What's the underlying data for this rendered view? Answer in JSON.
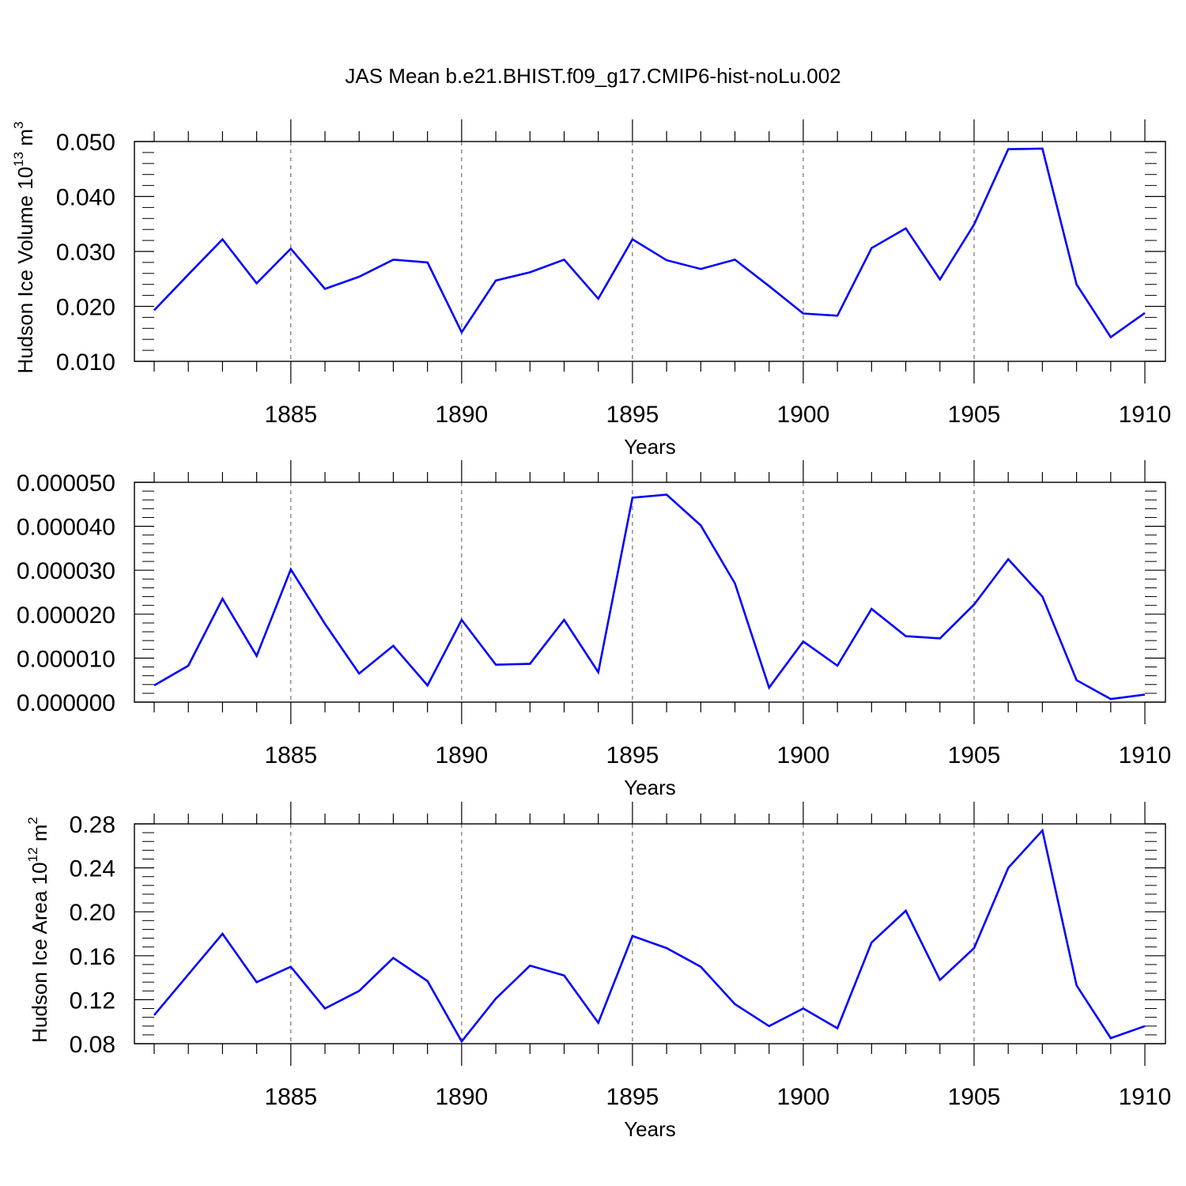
{
  "title": "JAS Mean b.e21.BHIST.f09_g17.CMIP6-hist-noLu.002",
  "chart_data": [
    {
      "type": "line",
      "xlabel": "Years",
      "ylabel": {
        "main": "Hudson Ice Volume 10",
        "sup": "13",
        "unit": " m",
        "unit_sup": "3"
      },
      "xlim": [
        1881,
        1910
      ],
      "ylim": [
        0.01,
        0.05
      ],
      "x_ticks": [
        "1885",
        "1890",
        "1895",
        "1900",
        "1905",
        "1910"
      ],
      "y_ticks": [
        "0.010",
        "0.020",
        "0.030",
        "0.040",
        "0.050"
      ],
      "grid": "dashed vertical at major x ticks",
      "color": "#0000ff",
      "x": [
        1881,
        1882,
        1883,
        1884,
        1885,
        1886,
        1887,
        1888,
        1889,
        1890,
        1891,
        1892,
        1893,
        1894,
        1895,
        1896,
        1897,
        1898,
        1899,
        1900,
        1901,
        1902,
        1903,
        1904,
        1905,
        1906,
        1907,
        1908,
        1909,
        1910
      ],
      "values": [
        0.0193,
        0.0258,
        0.0322,
        0.0242,
        0.0305,
        0.0232,
        0.0254,
        0.0285,
        0.028,
        0.0153,
        0.0247,
        0.0262,
        0.0285,
        0.0214,
        0.0322,
        0.0284,
        0.0268,
        0.0285,
        0.0237,
        0.0187,
        0.0183,
        0.0306,
        0.0342,
        0.0249,
        0.0349,
        0.0486,
        0.0487,
        0.024,
        0.0144,
        0.0188
      ]
    },
    {
      "type": "line",
      "xlabel": "Years",
      "ylabel": {
        "main": "",
        "sup": "",
        "unit": "",
        "unit_sup": ""
      },
      "xlim": [
        1881,
        1910
      ],
      "ylim": [
        0.0,
        5e-05
      ],
      "x_ticks": [
        "1885",
        "1890",
        "1895",
        "1900",
        "1905",
        "1910"
      ],
      "y_ticks": [
        "0.000000",
        "0.000010",
        "0.000020",
        "0.000030",
        "0.000040",
        "0.000050"
      ],
      "grid": "dashed vertical at major x ticks",
      "color": "#0000ff",
      "x": [
        1881,
        1882,
        1883,
        1884,
        1885,
        1886,
        1887,
        1888,
        1889,
        1890,
        1891,
        1892,
        1893,
        1894,
        1895,
        1896,
        1897,
        1898,
        1899,
        1900,
        1901,
        1902,
        1903,
        1904,
        1905,
        1906,
        1907,
        1908,
        1909,
        1910
      ],
      "values": [
        3.8e-06,
        8.3e-06,
        2.35e-05,
        1.05e-05,
        3.02e-05,
        1.78e-05,
        6.5e-06,
        1.28e-05,
        3.8e-06,
        1.87e-05,
        8.5e-06,
        8.7e-06,
        1.87e-05,
        6.8e-06,
        4.65e-05,
        4.72e-05,
        4.02e-05,
        2.7e-05,
        3.3e-06,
        1.38e-05,
        8.3e-06,
        2.12e-05,
        1.5e-05,
        1.45e-05,
        2.22e-05,
        3.25e-05,
        2.4e-05,
        5e-06,
        7e-07,
        1.7e-06
      ]
    },
    {
      "type": "line",
      "xlabel": "Years",
      "ylabel": {
        "main": "Hudson Ice Area 10",
        "sup": "12",
        "unit": " m",
        "unit_sup": "2"
      },
      "xlim": [
        1881,
        1910
      ],
      "ylim": [
        0.08,
        0.28
      ],
      "x_ticks": [
        "1885",
        "1890",
        "1895",
        "1900",
        "1905",
        "1910"
      ],
      "y_ticks": [
        "0.08",
        "0.12",
        "0.16",
        "0.20",
        "0.24",
        "0.28"
      ],
      "grid": "dashed vertical at major x ticks",
      "color": "#0000ff",
      "x": [
        1881,
        1882,
        1883,
        1884,
        1885,
        1886,
        1887,
        1888,
        1889,
        1890,
        1891,
        1892,
        1893,
        1894,
        1895,
        1896,
        1897,
        1898,
        1899,
        1900,
        1901,
        1902,
        1903,
        1904,
        1905,
        1906,
        1907,
        1908,
        1909,
        1910
      ],
      "values": [
        0.106,
        0.143,
        0.18,
        0.136,
        0.15,
        0.112,
        0.128,
        0.158,
        0.137,
        0.082,
        0.121,
        0.151,
        0.142,
        0.099,
        0.178,
        0.167,
        0.15,
        0.116,
        0.096,
        0.112,
        0.094,
        0.172,
        0.201,
        0.138,
        0.167,
        0.24,
        0.274,
        0.133,
        0.085,
        0.096
      ]
    }
  ]
}
